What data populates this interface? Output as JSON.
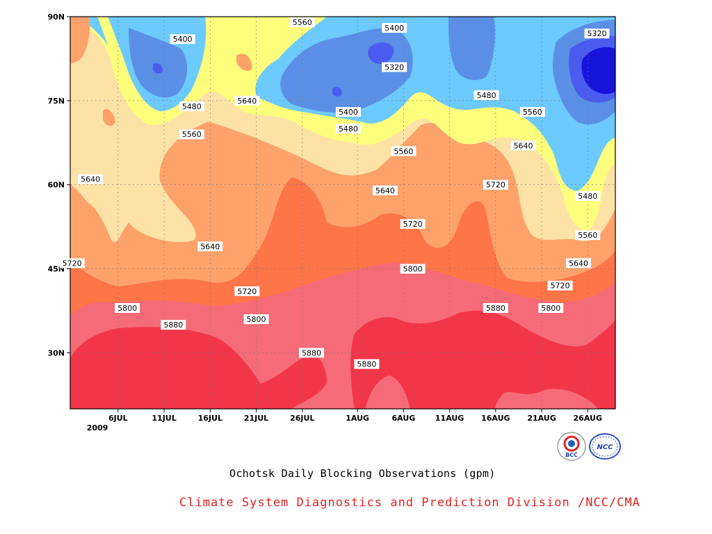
{
  "chart_data": {
    "type": "heatmap",
    "subtype": "filled-contour (time-latitude)",
    "title": "Ochotsk Daily Blocking Observations (gpm)",
    "credit": "Climate System Diagnostics and Prediction Division /NCC/CMA",
    "x_ticks": [
      "6JUL",
      "11JUL",
      "16JUL",
      "21JUL",
      "26JUL",
      "1AUG",
      "6AUG",
      "11AUG",
      "16AUG",
      "21AUG",
      "26AUG"
    ],
    "x_year_label": "2009",
    "y_ticks": [
      "30N",
      "45N",
      "60N",
      "75N",
      "90N"
    ],
    "ylim": [
      "20N",
      "90N"
    ],
    "grid": true,
    "contour_levels": [
      5320,
      5400,
      5480,
      5560,
      5640,
      5720,
      5800,
      5880
    ],
    "fill_colors": {
      "below_5320": "#1614d8",
      "5320_5400": "#4a5cf0",
      "5400_5480": "#5b8fe6",
      "5480_5560": "#6ccaff",
      "5560_5640": "#fdfe7c",
      "5640_5720": "#fde2a6",
      "5720_5800": "#fea26c",
      "5800_5880": "#fe7548",
      "5880_5960": "#f66b78",
      "above_5960": "#f2364a"
    },
    "contour_labels": [
      {
        "value": "5560",
        "date": "26JUL",
        "lat": "89N"
      },
      {
        "value": "5400",
        "date": "13JUL",
        "lat": "86N"
      },
      {
        "value": "5400",
        "date": "5AUG",
        "lat": "88N"
      },
      {
        "value": "5320",
        "date": "27AUG",
        "lat": "87N"
      },
      {
        "value": "5320",
        "date": "5AUG",
        "lat": "81N"
      },
      {
        "value": "5480",
        "date": "14JUL",
        "lat": "74N"
      },
      {
        "value": "5640",
        "date": "20JUL",
        "lat": "75N"
      },
      {
        "value": "5400",
        "date": "31JUL",
        "lat": "73N"
      },
      {
        "value": "5480",
        "date": "31JUL",
        "lat": "70N"
      },
      {
        "value": "5480",
        "date": "15AUG",
        "lat": "76N"
      },
      {
        "value": "5560",
        "date": "14JUL",
        "lat": "69N"
      },
      {
        "value": "5560",
        "date": "20AUG",
        "lat": "73N"
      },
      {
        "value": "5560",
        "date": "6AUG",
        "lat": "66N"
      },
      {
        "value": "5640",
        "date": "19AUG",
        "lat": "67N"
      },
      {
        "value": "5640",
        "date": "3JUL",
        "lat": "61N"
      },
      {
        "value": "5640",
        "date": "4AUG",
        "lat": "59N"
      },
      {
        "value": "5720",
        "date": "16AUG",
        "lat": "60N"
      },
      {
        "value": "5480",
        "date": "26AUG",
        "lat": "58N"
      },
      {
        "value": "5720",
        "date": "7AUG",
        "lat": "53N"
      },
      {
        "value": "5640",
        "date": "16JUL",
        "lat": "49N"
      },
      {
        "value": "5560",
        "date": "26AUG",
        "lat": "51N"
      },
      {
        "value": "5800",
        "date": "7AUG",
        "lat": "45N"
      },
      {
        "value": "5720",
        "date": "1JUL",
        "lat": "46N"
      },
      {
        "value": "5640",
        "date": "25AUG",
        "lat": "46N"
      },
      {
        "value": "5720",
        "date": "20JUL",
        "lat": "41N"
      },
      {
        "value": "5720",
        "date": "23AUG",
        "lat": "42N"
      },
      {
        "value": "5800",
        "date": "7JUL",
        "lat": "38N"
      },
      {
        "value": "5800",
        "date": "22AUG",
        "lat": "38N"
      },
      {
        "value": "5880",
        "date": "16AUG",
        "lat": "38N"
      },
      {
        "value": "5800",
        "date": "21JUL",
        "lat": "36N"
      },
      {
        "value": "5880",
        "date": "12JUL",
        "lat": "35N"
      },
      {
        "value": "5880",
        "date": "27JUL",
        "lat": "30N"
      },
      {
        "value": "5880",
        "date": "2AUG",
        "lat": "28N"
      }
    ]
  },
  "logos": [
    {
      "name": "BCC",
      "text": "BCC"
    },
    {
      "name": "NCC",
      "text": "NCC"
    }
  ]
}
